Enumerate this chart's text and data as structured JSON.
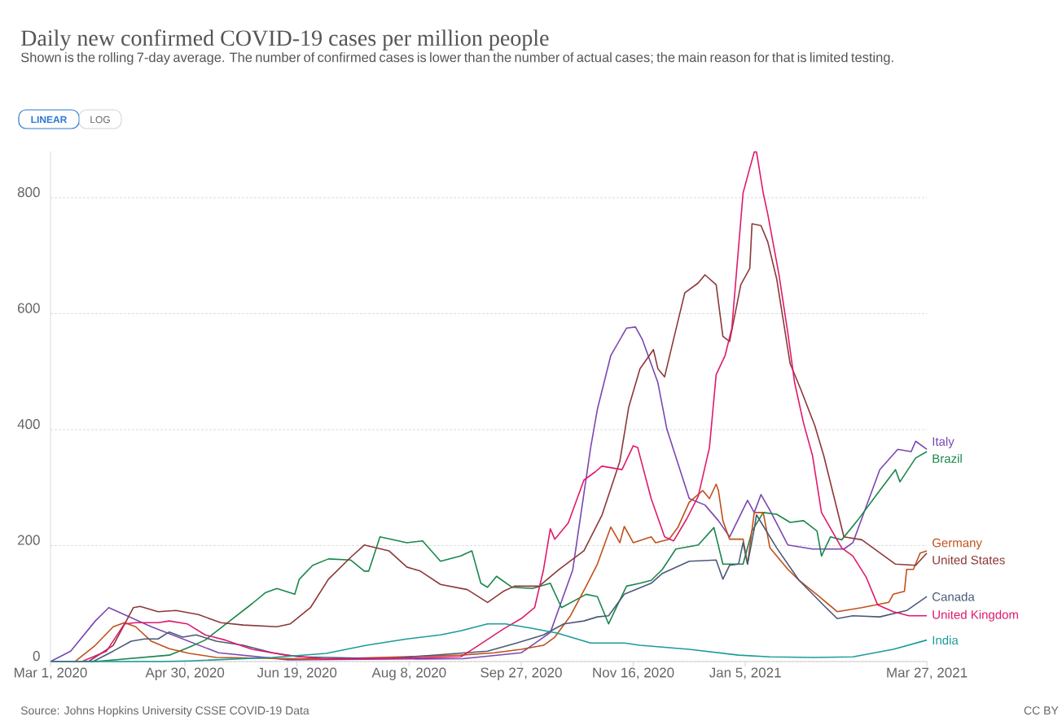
{
  "chart_data": {
    "type": "line",
    "title": "Daily new confirmed COVID-19 cases per million people",
    "subtitle": "Shown is the rolling 7-day average. The number of confirmed cases is lower than the number of actual cases; the main reason for that is limited testing.",
    "annotations": [
      "LINEAR",
      "LOG",
      "Source: Johns Hopkins University CSSE COVID-19 Data",
      "CC BY"
    ],
    "xlim": [
      "2020-03-01",
      "2021-03-27"
    ],
    "xticks": [
      {
        "value": "2020-03-01",
        "label": "Mar 1, 2020"
      },
      {
        "value": "2020-04-30",
        "label": "Apr 30, 2020"
      },
      {
        "value": "2020-06-19",
        "label": "Jun 19, 2020"
      },
      {
        "value": "2020-08-08",
        "label": "Aug 8, 2020"
      },
      {
        "value": "2020-09-27",
        "label": "Sep 27, 2020"
      },
      {
        "value": "2020-11-16",
        "label": "Nov 16, 2020"
      },
      {
        "value": "2021-01-05",
        "label": "Jan 5, 2021"
      },
      {
        "value": "2021-03-27",
        "label": "Mar 27, 2021"
      }
    ],
    "ylim": [
      0,
      880
    ],
    "yticks": [
      0,
      200,
      400,
      600,
      800
    ],
    "grid": "y",
    "series": [
      {
        "name": "Italy",
        "color": "#7b47b0",
        "x": [
          "2020-03-01",
          "2020-03-10",
          "2020-03-21",
          "2020-03-27",
          "2020-04-15",
          "2020-05-15",
          "2020-06-15",
          "2020-09-01",
          "2020-09-27",
          "2020-10-10",
          "2020-10-20",
          "2020-10-28",
          "2020-10-31",
          "2020-11-06",
          "2020-11-13",
          "2020-11-17",
          "2020-11-20",
          "2020-11-27",
          "2020-12-01",
          "2020-12-06",
          "2020-12-11",
          "2020-12-18",
          "2020-12-24",
          "2020-12-29",
          "2021-01-06",
          "2021-01-09",
          "2021-01-12",
          "2021-01-16",
          "2021-01-24",
          "2021-02-04",
          "2021-02-18",
          "2021-02-22",
          "2021-03-06",
          "2021-03-14",
          "2021-03-20",
          "2021-03-22",
          "2021-03-27"
        ],
        "values": [
          0,
          18,
          70,
          93,
          60,
          15,
          3,
          5,
          15,
          50,
          158,
          369,
          435,
          528,
          575,
          577,
          556,
          481,
          401,
          341,
          281,
          270,
          243,
          215,
          278,
          257,
          288,
          261,
          201,
          194,
          194,
          205,
          331,
          366,
          362,
          380,
          366
        ]
      },
      {
        "name": "Brazil",
        "color": "#19874b",
        "x": [
          "2020-03-01",
          "2020-03-21",
          "2020-04-23",
          "2020-05-02",
          "2020-05-09",
          "2020-05-20",
          "2020-05-30",
          "2020-06-05",
          "2020-06-10",
          "2020-06-18",
          "2020-06-20",
          "2020-06-26",
          "2020-07-03",
          "2020-07-13",
          "2020-07-19",
          "2020-07-21",
          "2020-07-26",
          "2020-08-07",
          "2020-08-14",
          "2020-08-22",
          "2020-08-31",
          "2020-09-05",
          "2020-09-09",
          "2020-09-12",
          "2020-09-16",
          "2020-09-23",
          "2020-10-02",
          "2020-10-10",
          "2020-10-15",
          "2020-10-26",
          "2020-10-31",
          "2020-11-05",
          "2020-11-13",
          "2020-11-19",
          "2020-11-24",
          "2020-11-29",
          "2020-12-05",
          "2020-12-15",
          "2020-12-22",
          "2020-12-26",
          "2021-01-04",
          "2021-01-08",
          "2021-01-13",
          "2021-01-19",
          "2021-01-25",
          "2021-01-31",
          "2021-02-06",
          "2021-02-08",
          "2021-02-12",
          "2021-02-17",
          "2021-02-24",
          "2021-03-06",
          "2021-03-13",
          "2021-03-15",
          "2021-03-22",
          "2021-03-27"
        ],
        "values": [
          0,
          0,
          11,
          25,
          37,
          70,
          100,
          119,
          126,
          116,
          142,
          166,
          177,
          175,
          156,
          156,
          215,
          205,
          208,
          173,
          182,
          191,
          135,
          128,
          147,
          128,
          126,
          135,
          93,
          116,
          112,
          65,
          130,
          135,
          140,
          159,
          194,
          201,
          231,
          168,
          168,
          225,
          257,
          254,
          240,
          243,
          225,
          182,
          215,
          210,
          243,
          295,
          331,
          310,
          351,
          362
        ]
      },
      {
        "name": "Germany",
        "color": "#c0501a",
        "x": [
          "2020-03-01",
          "2020-03-12",
          "2020-03-21",
          "2020-03-29",
          "2020-04-03",
          "2020-04-08",
          "2020-04-15",
          "2020-04-23",
          "2020-05-02",
          "2020-05-14",
          "2020-06-29",
          "2020-08-31",
          "2020-09-15",
          "2020-09-27",
          "2020-10-07",
          "2020-10-12",
          "2020-10-19",
          "2020-10-26",
          "2020-10-31",
          "2020-11-04",
          "2020-11-06",
          "2020-11-10",
          "2020-11-12",
          "2020-11-16",
          "2020-11-24",
          "2020-11-26",
          "2020-12-02",
          "2020-12-06",
          "2020-12-11",
          "2020-12-17",
          "2020-12-20",
          "2020-12-23",
          "2020-12-24",
          "2020-12-26",
          "2020-12-29",
          "2021-01-04",
          "2021-01-06",
          "2021-01-09",
          "2021-01-13",
          "2021-01-16",
          "2021-01-24",
          "2021-01-29",
          "2021-02-07",
          "2021-02-15",
          "2021-02-26",
          "2021-03-10",
          "2021-03-12",
          "2021-03-17",
          "2021-03-18",
          "2021-03-21",
          "2021-03-24",
          "2021-03-27"
        ],
        "values": [
          0,
          0,
          28,
          60,
          67,
          60,
          35,
          22,
          14,
          7,
          4,
          11,
          15,
          21,
          28,
          42,
          79,
          130,
          168,
          211,
          232,
          205,
          233,
          205,
          215,
          205,
          211,
          232,
          275,
          295,
          281,
          306,
          295,
          243,
          211,
          211,
          168,
          257,
          257,
          196,
          159,
          140,
          112,
          86,
          93,
          102,
          116,
          121,
          159,
          159,
          187,
          191
        ]
      },
      {
        "name": "United States",
        "color": "#8c3838",
        "x": [
          "2020-03-01",
          "2020-03-18",
          "2020-03-29",
          "2020-04-07",
          "2020-04-10",
          "2020-04-18",
          "2020-04-26",
          "2020-05-06",
          "2020-05-16",
          "2020-05-26",
          "2020-06-10",
          "2020-06-16",
          "2020-06-25",
          "2020-07-03",
          "2020-07-13",
          "2020-07-19",
          "2020-07-30",
          "2020-08-07",
          "2020-08-13",
          "2020-08-22",
          "2020-09-03",
          "2020-09-12",
          "2020-09-19",
          "2020-09-24",
          "2020-10-05",
          "2020-10-14",
          "2020-10-25",
          "2020-11-02",
          "2020-11-10",
          "2020-11-14",
          "2020-11-19",
          "2020-11-25",
          "2020-11-27",
          "2020-11-30",
          "2020-12-04",
          "2020-12-09",
          "2020-12-15",
          "2020-12-18",
          "2020-12-23",
          "2020-12-26",
          "2020-12-29",
          "2021-01-03",
          "2021-01-07",
          "2021-01-08",
          "2021-01-12",
          "2021-01-15",
          "2021-01-19",
          "2021-01-25",
          "2021-01-30",
          "2021-02-05",
          "2021-02-09",
          "2021-02-18",
          "2021-02-26",
          "2021-03-03",
          "2021-03-13",
          "2021-03-22",
          "2021-03-27"
        ],
        "values": [
          0,
          0,
          28,
          93,
          95,
          86,
          88,
          81,
          67,
          63,
          60,
          65,
          93,
          142,
          180,
          201,
          191,
          163,
          156,
          133,
          124,
          102,
          121,
          130,
          130,
          159,
          191,
          252,
          345,
          439,
          505,
          538,
          505,
          491,
          556,
          636,
          653,
          667,
          650,
          561,
          552,
          650,
          678,
          755,
          752,
          724,
          660,
          514,
          467,
          407,
          355,
          215,
          210,
          196,
          168,
          166,
          187
        ]
      },
      {
        "name": "Canada",
        "color": "#4a5a78",
        "x": [
          "2020-03-01",
          "2020-03-20",
          "2020-03-29",
          "2020-04-06",
          "2020-04-12",
          "2020-04-18",
          "2020-04-23",
          "2020-04-29",
          "2020-05-05",
          "2020-05-14",
          "2020-05-26",
          "2020-06-08",
          "2020-06-20",
          "2020-07-29",
          "2020-09-12",
          "2020-09-25",
          "2020-10-07",
          "2020-10-16",
          "2020-10-25",
          "2020-10-31",
          "2020-11-05",
          "2020-11-12",
          "2020-11-24",
          "2020-11-29",
          "2020-12-11",
          "2020-12-23",
          "2020-12-26",
          "2020-12-29",
          "2021-01-02",
          "2021-01-04",
          "2021-01-06",
          "2021-01-09",
          "2021-01-10",
          "2021-01-19",
          "2021-01-29",
          "2021-02-10",
          "2021-02-15",
          "2021-02-22",
          "2021-03-06",
          "2021-03-18",
          "2021-03-27"
        ],
        "values": [
          0,
          0,
          18,
          35,
          39,
          39,
          51,
          42,
          46,
          35,
          28,
          15,
          8,
          5,
          18,
          32,
          46,
          65,
          70,
          77,
          79,
          116,
          135,
          152,
          173,
          175,
          142,
          166,
          168,
          205,
          168,
          229,
          253,
          196,
          140,
          93,
          74,
          79,
          77,
          88,
          112
        ]
      },
      {
        "name": "United Kingdom",
        "color": "#e0196c",
        "x": [
          "2020-03-01",
          "2020-03-15",
          "2020-03-26",
          "2020-04-03",
          "2020-04-08",
          "2020-04-18",
          "2020-04-23",
          "2020-05-01",
          "2020-05-09",
          "2020-05-18",
          "2020-05-30",
          "2020-06-14",
          "2020-07-02",
          "2020-08-08",
          "2020-08-31",
          "2020-09-08",
          "2020-09-19",
          "2020-09-27",
          "2020-10-03",
          "2020-10-07",
          "2020-10-10",
          "2020-10-12",
          "2020-10-18",
          "2020-10-25",
          "2020-10-30",
          "2020-11-02",
          "2020-11-11",
          "2020-11-16",
          "2020-11-18",
          "2020-11-24",
          "2020-11-30",
          "2020-12-04",
          "2020-12-10",
          "2020-12-15",
          "2020-12-20",
          "2020-12-23",
          "2020-12-27",
          "2020-12-30",
          "2021-01-04",
          "2021-01-07",
          "2021-01-09",
          "2021-01-10",
          "2021-01-13",
          "2021-01-15",
          "2021-01-20",
          "2021-01-24",
          "2021-01-27",
          "2021-01-31",
          "2021-02-04",
          "2021-02-08",
          "2021-02-17",
          "2021-02-22",
          "2021-02-28",
          "2021-03-05",
          "2021-03-12",
          "2021-03-19",
          "2021-03-27"
        ],
        "values": [
          0,
          0,
          18,
          65,
          67,
          67,
          70,
          65,
          46,
          37,
          21,
          11,
          4,
          6,
          8,
          28,
          56,
          74,
          93,
          159,
          229,
          211,
          239,
          313,
          327,
          337,
          331,
          372,
          369,
          281,
          215,
          208,
          247,
          285,
          369,
          495,
          528,
          575,
          808,
          851,
          879,
          879,
          808,
          772,
          668,
          566,
          481,
          411,
          355,
          257,
          196,
          182,
          145,
          98,
          86,
          79,
          79
        ]
      },
      {
        "name": "India",
        "color": "#1a9c98",
        "x": [
          "2020-03-01",
          "2020-04-20",
          "2020-05-02",
          "2020-06-08",
          "2020-07-02",
          "2020-07-20",
          "2020-08-07",
          "2020-08-22",
          "2020-08-31",
          "2020-09-12",
          "2020-09-20",
          "2020-10-01",
          "2020-10-13",
          "2020-10-28",
          "2020-11-12",
          "2020-11-19",
          "2020-12-11",
          "2021-01-02",
          "2021-01-16",
          "2021-02-04",
          "2021-02-22",
          "2021-03-12",
          "2021-03-27"
        ],
        "values": [
          0,
          0,
          1,
          7,
          14,
          28,
          39,
          46,
          53,
          65,
          65,
          58,
          49,
          32,
          32,
          28,
          21,
          11,
          8,
          7,
          8,
          21,
          37
        ]
      }
    ]
  }
}
